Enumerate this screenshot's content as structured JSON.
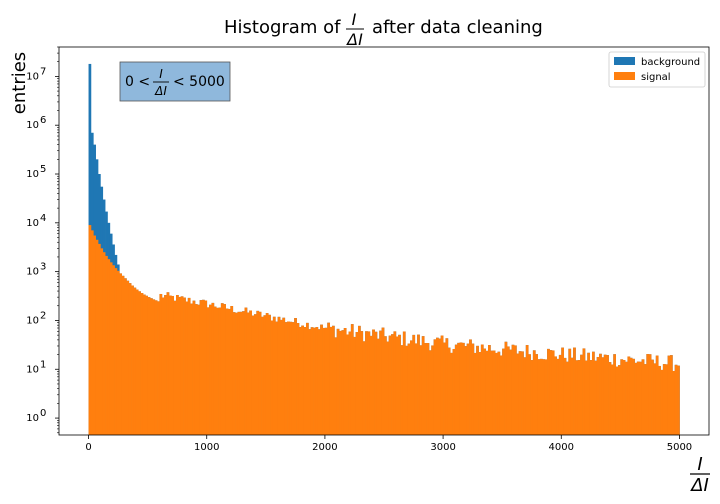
{
  "chart_data": {
    "type": "bar",
    "subtype": "stacked-histogram",
    "title_prefix": "Histogram of",
    "title_fraction": {
      "numerator": "I",
      "denominator": "ΔI"
    },
    "title_suffix": "after data cleaning",
    "ylabel": "entries",
    "xlabel_fraction": {
      "numerator": "I",
      "denominator": "ΔI"
    },
    "y_scale": "log",
    "xlim": [
      -250,
      5250
    ],
    "ylim": [
      0.45,
      40000000
    ],
    "x_ticks": [
      0,
      1000,
      2000,
      3000,
      4000,
      5000
    ],
    "x_tick_labels": [
      "0",
      "1000",
      "2000",
      "3000",
      "4000",
      "5000"
    ],
    "y_ticks": [
      1,
      10,
      100,
      1000,
      10000,
      100000,
      1000000,
      10000000
    ],
    "y_tick_labels": [
      "10^0",
      "10^1",
      "10^2",
      "10^3",
      "10^4",
      "10^5",
      "10^6",
      "10^7"
    ],
    "bins": {
      "start": 0,
      "end": 5000,
      "count": 250
    },
    "annotation": {
      "prefix": "0 <",
      "fraction": {
        "numerator": "I",
        "denominator": "ΔI"
      },
      "suffix": "< 5000"
    },
    "legend_position": "top-right",
    "series": [
      {
        "name": "background",
        "color": "#1f77b4",
        "values": [
          18000000,
          700000,
          400000,
          200000,
          100000,
          55000,
          30000,
          17000,
          10000,
          6000,
          3600,
          2200,
          1400,
          900,
          600,
          420,
          320,
          250,
          200,
          160,
          140,
          120,
          105,
          95,
          85,
          78,
          72,
          66,
          62,
          58
        ]
      },
      {
        "name": "signal",
        "color": "#ff7f0e",
        "values": [
          9000,
          7000,
          5500,
          4500,
          3700,
          3000,
          2500,
          2100,
          1800,
          1550,
          1350,
          1180,
          1040,
          920,
          820,
          730,
          650,
          580,
          520,
          470,
          430,
          395,
          365,
          340,
          320,
          300,
          285,
          270,
          258,
          246
        ]
      }
    ],
    "signal_tail": {
      "y_at_x600": 330,
      "y_at_x1000": 220,
      "y_at_x2000": 70,
      "y_at_x3000": 33,
      "y_at_x4000": 20,
      "y_at_x5000": 13
    }
  }
}
